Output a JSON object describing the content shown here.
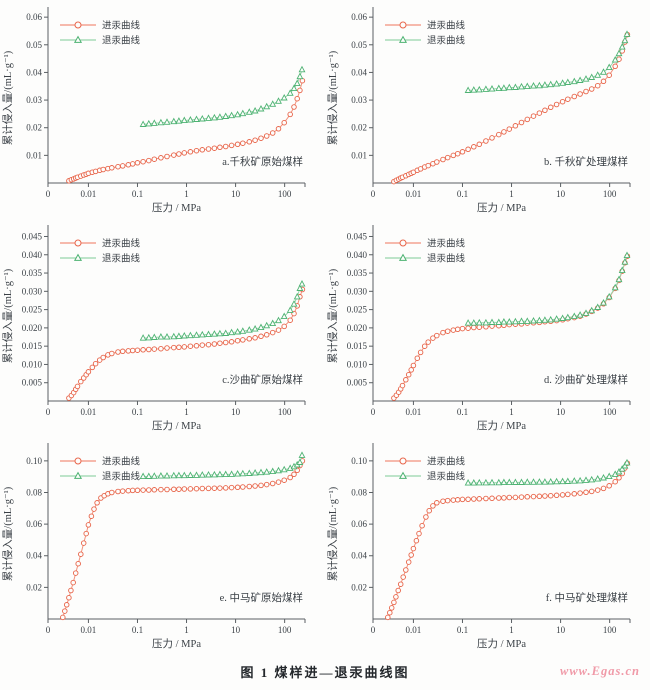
{
  "figure": {
    "caption": "图 1  煤样进—退汞曲线图",
    "watermark": "www.Egas.cn"
  },
  "style": {
    "intrusion_marker": "#e8654a",
    "intrusion_line": "#f2917b",
    "extrusion_marker": "#4db272",
    "extrusion_line": "#97d6aa",
    "axis_color": "#5a5f63",
    "text_color": "#3a4046",
    "watermark_color": "#f09aa8",
    "paper": "#fdfdfc"
  },
  "x_grids": {
    "intrusion_std": [
      0.004,
      0.0045,
      0.005,
      0.0055,
      0.006,
      0.007,
      0.008,
      0.009,
      0.01,
      0.012,
      0.014,
      0.017,
      0.02,
      0.025,
      0.03,
      0.04,
      0.05,
      0.065,
      0.08,
      0.1,
      0.13,
      0.17,
      0.22,
      0.3,
      0.4,
      0.55,
      0.7,
      0.9,
      1.2,
      1.6,
      2.1,
      2.8,
      3.7,
      4.8,
      6.3,
      8.3,
      11,
      14,
      19,
      25,
      33,
      43,
      57,
      75,
      98,
      130,
      155,
      180,
      205,
      230
    ],
    "intrusion_steep": [
      0.003,
      0.0033,
      0.0036,
      0.004,
      0.0044,
      0.0049,
      0.0055,
      0.0062,
      0.007,
      0.008,
      0.009,
      0.01,
      0.0115,
      0.013,
      0.015,
      0.018,
      0.021,
      0.025,
      0.03,
      0.04,
      0.05,
      0.065,
      0.08,
      0.1,
      0.13,
      0.17,
      0.22,
      0.3,
      0.4,
      0.55,
      0.7,
      0.9,
      1.2,
      1.6,
      2.1,
      2.8,
      3.7,
      4.8,
      6.3,
      8.3,
      11,
      14,
      19,
      25,
      33,
      43,
      57,
      75,
      98,
      130,
      155,
      180,
      205,
      230
    ],
    "extrusion_std": [
      0.13,
      0.17,
      0.22,
      0.3,
      0.4,
      0.55,
      0.7,
      0.9,
      1.2,
      1.6,
      2.1,
      2.8,
      3.7,
      4.8,
      6.3,
      8.3,
      11,
      14,
      19,
      25,
      33,
      43,
      57,
      75,
      98,
      130,
      155,
      180,
      205,
      226
    ]
  },
  "chart_data": [
    {
      "id": "a",
      "type": "line",
      "title": "a.千秋矿原始煤样",
      "xlabel": "压力 / MPa",
      "ylabel": "累计侵入量/(mL·g⁻¹)",
      "xscale": "log",
      "xlim": [
        0.0015,
        260
      ],
      "xticks": [
        "0",
        "0.01",
        "0.1",
        "1",
        "10",
        "100"
      ],
      "ylim": [
        0,
        0.0615
      ],
      "yticks": [
        "0.01",
        "0.02",
        "0.03",
        "0.04",
        "0.05",
        "0.06"
      ],
      "series": [
        {
          "name": "进汞曲线",
          "kind": "intrusion",
          "marker": "circle",
          "x_ref": "intrusion_std",
          "y": [
            0.0008,
            0.0012,
            0.0015,
            0.0018,
            0.0021,
            0.0025,
            0.0029,
            0.0032,
            0.0035,
            0.0039,
            0.0042,
            0.0046,
            0.0049,
            0.0052,
            0.0055,
            0.0059,
            0.0062,
            0.0066,
            0.0069,
            0.0073,
            0.0077,
            0.0081,
            0.0086,
            0.0091,
            0.0096,
            0.0101,
            0.0105,
            0.0109,
            0.0113,
            0.0117,
            0.012,
            0.0123,
            0.0126,
            0.0129,
            0.0132,
            0.0136,
            0.014,
            0.0144,
            0.0149,
            0.0155,
            0.0162,
            0.017,
            0.0181,
            0.0196,
            0.0218,
            0.0248,
            0.0275,
            0.0305,
            0.0335,
            0.037
          ]
        },
        {
          "name": "退汞曲线",
          "kind": "extrusion",
          "marker": "triangle",
          "x_ref": "extrusion_std",
          "y": [
            0.0212,
            0.0214,
            0.0216,
            0.0218,
            0.022,
            0.0222,
            0.0224,
            0.0226,
            0.0228,
            0.023,
            0.0232,
            0.0234,
            0.0236,
            0.0238,
            0.0241,
            0.0244,
            0.0247,
            0.0251,
            0.0256,
            0.0261,
            0.0268,
            0.0276,
            0.0285,
            0.0296,
            0.0308,
            0.0325,
            0.0342,
            0.036,
            0.0385,
            0.041
          ]
        }
      ]
    },
    {
      "id": "b",
      "type": "line",
      "title": "b. 千秋矿处理煤样",
      "xlabel": "压力 / MPa",
      "ylabel": "累计侵入量/(mL·g⁻¹)",
      "xscale": "log",
      "xlim": [
        0.0015,
        260
      ],
      "xticks": [
        "0",
        "0.01",
        "0.1",
        "1",
        "10",
        "100"
      ],
      "ylim": [
        0,
        0.0615
      ],
      "yticks": [
        "0.01",
        "0.02",
        "0.03",
        "0.04",
        "0.05",
        "0.06"
      ],
      "series": [
        {
          "name": "进汞曲线",
          "kind": "intrusion",
          "marker": "circle",
          "x_ref": "intrusion_std",
          "y": [
            0.0005,
            0.001,
            0.0014,
            0.0018,
            0.0021,
            0.0026,
            0.0031,
            0.0035,
            0.0039,
            0.0046,
            0.0051,
            0.0058,
            0.0063,
            0.007,
            0.0076,
            0.0085,
            0.0092,
            0.01,
            0.0106,
            0.0113,
            0.0122,
            0.0131,
            0.014,
            0.0152,
            0.0163,
            0.0175,
            0.0185,
            0.0195,
            0.0207,
            0.0219,
            0.023,
            0.0242,
            0.0253,
            0.0263,
            0.0274,
            0.0284,
            0.0294,
            0.0303,
            0.0313,
            0.0322,
            0.0331,
            0.034,
            0.0352,
            0.0368,
            0.039,
            0.0422,
            0.0448,
            0.0478,
            0.051,
            0.0537
          ]
        },
        {
          "name": "退汞曲线",
          "kind": "extrusion",
          "marker": "triangle",
          "x_ref": "extrusion_std",
          "y": [
            0.0335,
            0.0336,
            0.0337,
            0.0339,
            0.034,
            0.0342,
            0.0343,
            0.0345,
            0.0346,
            0.0348,
            0.0349,
            0.0351,
            0.0352,
            0.0354,
            0.0356,
            0.0358,
            0.0361,
            0.0364,
            0.0367,
            0.0371,
            0.0376,
            0.0382,
            0.039,
            0.0401,
            0.0418,
            0.0445,
            0.0468,
            0.0492,
            0.0515,
            0.0538
          ]
        }
      ]
    },
    {
      "id": "c",
      "type": "line",
      "title": "c.沙曲矿原始煤样",
      "xlabel": "压力 / MPa",
      "ylabel": "累计侵入量/(mL·g⁻¹)",
      "xscale": "log",
      "xlim": [
        0.0015,
        260
      ],
      "xticks": [
        "0",
        "0.01",
        "0.1",
        "1",
        "10",
        "100"
      ],
      "ylim": [
        0,
        0.0465
      ],
      "yticks": [
        "0.005",
        "0.010",
        "0.015",
        "0.020",
        "0.025",
        "0.030",
        "0.035",
        "0.040",
        "0.045"
      ],
      "series": [
        {
          "name": "进汞曲线",
          "kind": "intrusion",
          "marker": "circle",
          "x_ref": "intrusion_std",
          "y": [
            0.0008,
            0.0015,
            0.0023,
            0.0032,
            0.004,
            0.0053,
            0.0063,
            0.0072,
            0.008,
            0.0092,
            0.0102,
            0.0112,
            0.0119,
            0.0126,
            0.013,
            0.0134,
            0.0136,
            0.0137,
            0.0138,
            0.0139,
            0.014,
            0.0141,
            0.0142,
            0.0143,
            0.0145,
            0.0146,
            0.0147,
            0.0148,
            0.015,
            0.0151,
            0.0153,
            0.0154,
            0.0156,
            0.0158,
            0.016,
            0.0162,
            0.0165,
            0.0167,
            0.017,
            0.0173,
            0.0177,
            0.0181,
            0.0187,
            0.0194,
            0.0204,
            0.0221,
            0.0239,
            0.026,
            0.0285,
            0.0305
          ]
        },
        {
          "name": "退汞曲线",
          "kind": "extrusion",
          "marker": "triangle",
          "x_ref": "extrusion_std",
          "y": [
            0.0172,
            0.0173,
            0.0174,
            0.0175,
            0.0175,
            0.0176,
            0.0177,
            0.0178,
            0.0179,
            0.018,
            0.0181,
            0.0182,
            0.0183,
            0.0184,
            0.0185,
            0.0187,
            0.0189,
            0.0191,
            0.0194,
            0.0197,
            0.0201,
            0.0206,
            0.0212,
            0.022,
            0.0231,
            0.0248,
            0.0265,
            0.0285,
            0.0308,
            0.032
          ]
        }
      ]
    },
    {
      "id": "d",
      "type": "line",
      "title": "d. 沙曲矿处理煤样",
      "xlabel": "压力 / MPa",
      "ylabel": "累计侵入量/(mL·g⁻¹)",
      "xscale": "log",
      "xlim": [
        0.0015,
        260
      ],
      "xticks": [
        "0",
        "0.01",
        "0.1",
        "1",
        "10",
        "100"
      ],
      "ylim": [
        0,
        0.0465
      ],
      "yticks": [
        "0.005",
        "0.010",
        "0.015",
        "0.020",
        "0.025",
        "0.030",
        "0.035",
        "0.040",
        "0.045"
      ],
      "series": [
        {
          "name": "进汞曲线",
          "kind": "intrusion",
          "marker": "circle",
          "x_ref": "intrusion_std",
          "y": [
            0.0008,
            0.0016,
            0.0024,
            0.0033,
            0.0042,
            0.0058,
            0.0072,
            0.0085,
            0.0097,
            0.0117,
            0.0133,
            0.015,
            0.0161,
            0.0172,
            0.0179,
            0.0187,
            0.0191,
            0.0194,
            0.0196,
            0.0198,
            0.0199,
            0.0201,
            0.0202,
            0.0203,
            0.0205,
            0.0206,
            0.0207,
            0.0209,
            0.021,
            0.0211,
            0.0213,
            0.0214,
            0.0215,
            0.0217,
            0.0218,
            0.022,
            0.0222,
            0.0225,
            0.0228,
            0.0232,
            0.0238,
            0.0245,
            0.0254,
            0.0266,
            0.0283,
            0.0308,
            0.033,
            0.0355,
            0.0378,
            0.0396
          ]
        },
        {
          "name": "退汞曲线",
          "kind": "extrusion",
          "marker": "triangle",
          "x_ref": "extrusion_std",
          "y": [
            0.0213,
            0.0213,
            0.0214,
            0.0214,
            0.0215,
            0.0215,
            0.0216,
            0.0216,
            0.0217,
            0.0218,
            0.0218,
            0.0219,
            0.022,
            0.0221,
            0.0222,
            0.0224,
            0.0226,
            0.0228,
            0.0231,
            0.0235,
            0.024,
            0.0247,
            0.0256,
            0.0268,
            0.0285,
            0.031,
            0.0332,
            0.0357,
            0.038,
            0.0398
          ]
        }
      ]
    },
    {
      "id": "e",
      "type": "line",
      "title": "e. 中马矿原始煤样",
      "xlabel": "压力 / MPa",
      "ylabel": "累计侵入量/(mL·g⁻¹)",
      "xscale": "log",
      "xlim": [
        0.0015,
        260
      ],
      "xticks": [
        "0",
        "0.01",
        "0.1",
        "1",
        "10",
        "100"
      ],
      "ylim": [
        0,
        0.1075
      ],
      "yticks": [
        "0.02",
        "0.04",
        "0.06",
        "0.08",
        "0.10"
      ],
      "series": [
        {
          "name": "进汞曲线",
          "kind": "intrusion",
          "marker": "circle",
          "x_ref": "intrusion_steep",
          "y": [
            0.001,
            0.005,
            0.009,
            0.0135,
            0.018,
            0.023,
            0.029,
            0.035,
            0.041,
            0.048,
            0.054,
            0.0595,
            0.065,
            0.0695,
            0.0735,
            0.0765,
            0.078,
            0.0792,
            0.08,
            0.0806,
            0.0809,
            0.0811,
            0.0813,
            0.0814,
            0.0815,
            0.0816,
            0.0817,
            0.0818,
            0.0819,
            0.082,
            0.0821,
            0.0822,
            0.0823,
            0.0824,
            0.0825,
            0.0826,
            0.0827,
            0.0828,
            0.0829,
            0.0831,
            0.0833,
            0.0835,
            0.0838,
            0.0841,
            0.0845,
            0.085,
            0.0857,
            0.0866,
            0.0878,
            0.0895,
            0.0915,
            0.094,
            0.097,
            0.1
          ]
        },
        {
          "name": "退汞曲线",
          "kind": "extrusion",
          "marker": "triangle",
          "x_ref": "extrusion_std",
          "y": [
            0.0901,
            0.0902,
            0.0903,
            0.0904,
            0.0905,
            0.0906,
            0.0907,
            0.0907,
            0.0908,
            0.0909,
            0.091,
            0.0911,
            0.0912,
            0.0913,
            0.0914,
            0.0915,
            0.0917,
            0.0919,
            0.0921,
            0.0923,
            0.0926,
            0.0929,
            0.0933,
            0.0938,
            0.0944,
            0.0953,
            0.0963,
            0.0975,
            0.099,
            0.1035
          ]
        }
      ]
    },
    {
      "id": "f",
      "type": "line",
      "title": "f. 中马矿处理煤样",
      "xlabel": "压力 / MPa",
      "ylabel": "累计侵入量/(mL·g⁻¹)",
      "xscale": "log",
      "xlim": [
        0.0015,
        260
      ],
      "xticks": [
        "0",
        "0.01",
        "0.1",
        "1",
        "10",
        "100"
      ],
      "ylim": [
        0,
        0.1075
      ],
      "yticks": [
        "0.02",
        "0.04",
        "0.06",
        "0.08",
        "0.10"
      ],
      "series": [
        {
          "name": "进汞曲线",
          "kind": "intrusion",
          "marker": "circle",
          "x_ref": "intrusion_steep",
          "y": [
            0.001,
            0.004,
            0.007,
            0.0105,
            0.014,
            0.018,
            0.022,
            0.0265,
            0.031,
            0.036,
            0.0405,
            0.0445,
            0.0495,
            0.054,
            0.059,
            0.0645,
            0.0685,
            0.0715,
            0.0735,
            0.0745,
            0.0749,
            0.0752,
            0.0754,
            0.0756,
            0.0757,
            0.0759,
            0.076,
            0.0762,
            0.0763,
            0.0765,
            0.0766,
            0.0768,
            0.0769,
            0.0771,
            0.0773,
            0.0774,
            0.0776,
            0.0778,
            0.078,
            0.0782,
            0.0785,
            0.0788,
            0.0792,
            0.0796,
            0.0801,
            0.0807,
            0.0815,
            0.0826,
            0.0842,
            0.0868,
            0.0893,
            0.092,
            0.0955,
            0.0985
          ]
        },
        {
          "name": "退汞曲线",
          "kind": "extrusion",
          "marker": "triangle",
          "x_ref": "extrusion_std",
          "y": [
            0.086,
            0.086,
            0.0861,
            0.0861,
            0.0862,
            0.0862,
            0.0863,
            0.0863,
            0.0864,
            0.0864,
            0.0865,
            0.0865,
            0.0866,
            0.0866,
            0.0867,
            0.0868,
            0.0869,
            0.087,
            0.0872,
            0.0874,
            0.0877,
            0.088,
            0.0885,
            0.0892,
            0.0901,
            0.0915,
            0.093,
            0.0948,
            0.0968,
            0.0988
          ]
        }
      ]
    }
  ]
}
